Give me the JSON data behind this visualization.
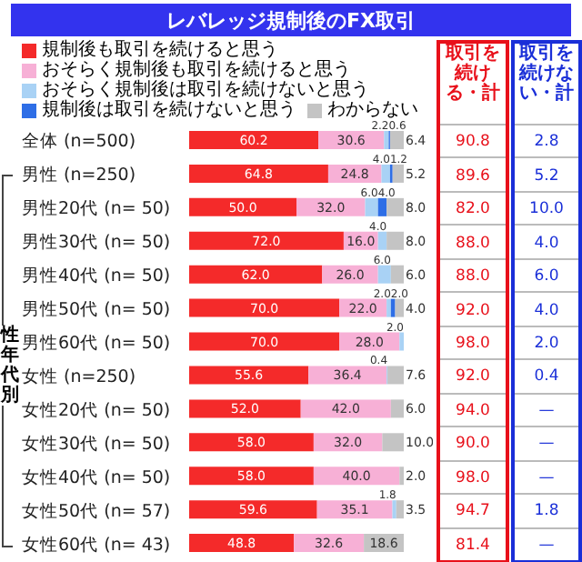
{
  "chart_data": {
    "type": "bar",
    "orientation": "horizontal",
    "stacked": true,
    "title": "レバレッジ規制後のFX取引",
    "categories": [
      "全体 (n=500)",
      "男性 (n=250)",
      "男性20代 (n= 50)",
      "男性30代 (n= 50)",
      "男性40代 (n= 50)",
      "男性50代 (n= 50)",
      "男性60代 (n= 50)",
      "女性 (n=250)",
      "女性20代 (n= 50)",
      "女性30代 (n= 50)",
      "女性40代 (n= 50)",
      "女性50代 (n= 57)",
      "女性60代 (n= 43)"
    ],
    "series": [
      {
        "name": "規制後も取引を続けると思う",
        "color": "#f42a2a",
        "values": [
          60.2,
          64.8,
          50.0,
          72.0,
          62.0,
          70.0,
          70.0,
          55.6,
          52.0,
          58.0,
          58.0,
          59.6,
          48.8
        ],
        "value_labels": [
          "60.2",
          "64.8",
          "50.0",
          "72.0",
          "62.0",
          "70.0",
          "70.0",
          "55.6",
          "52.0",
          "58.0",
          "58.0",
          "59.6",
          "48.8"
        ]
      },
      {
        "name": "おそらく規制後も取引を続けると思う",
        "color": "#f7b0d6",
        "values": [
          30.6,
          24.8,
          32.0,
          16.0,
          26.0,
          22.0,
          28.0,
          36.4,
          42.0,
          32.0,
          40.0,
          35.1,
          32.6
        ],
        "value_labels": [
          "30.6",
          "24.8",
          "32.0",
          "16.0",
          "26.0",
          "22.0",
          "28.0",
          "36.4",
          "42.0",
          "32.0",
          "40.0",
          "35.1",
          "32.6"
        ]
      },
      {
        "name": "おそらく規制後は取引を続けないと思う",
        "color": "#a9d2f5",
        "values": [
          2.2,
          4.0,
          6.0,
          4.0,
          6.0,
          2.0,
          2.0,
          0.4,
          null,
          null,
          null,
          1.8,
          null
        ],
        "value_labels": [
          "2.2",
          "4.0",
          "6.0",
          "4.0",
          "6.0",
          "2.0",
          "2.0",
          "0.4",
          null,
          null,
          null,
          "1.8",
          null
        ]
      },
      {
        "name": "規制後は取引を続けないと思う",
        "color": "#2e6ee6",
        "values": [
          0.6,
          1.2,
          4.0,
          null,
          null,
          2.0,
          null,
          null,
          null,
          null,
          null,
          null,
          null
        ],
        "value_labels": [
          "0.6",
          "1.2",
          "4.0",
          null,
          null,
          "2.0",
          null,
          null,
          null,
          null,
          null,
          null,
          null
        ]
      },
      {
        "name": "わからない",
        "color": "#c4c4c4",
        "values": [
          6.4,
          5.2,
          8.0,
          8.0,
          6.0,
          4.0,
          null,
          7.6,
          6.0,
          10.0,
          2.0,
          3.5,
          18.6
        ],
        "value_labels": [
          "6.4",
          "5.2",
          "8.0",
          "8.0",
          "6.0",
          "4.0",
          null,
          "7.6",
          "6.0",
          "10.0",
          "2.0",
          "3.5",
          "18.6"
        ]
      }
    ],
    "legend": "top",
    "annotations": [
      "性年代別",
      "取引を続ける・計",
      "取引を続けない・計",
      "90.8",
      "2.8",
      "89.6",
      "5.2",
      "82.0",
      "10.0",
      "88.0",
      "4.0",
      "88.0",
      "6.0",
      "92.0",
      "4.0",
      "98.0",
      "2.0",
      "92.0",
      "0.4",
      "94.0",
      "—",
      "90.0",
      "—",
      "98.0",
      "—",
      "94.7",
      "1.8",
      "81.4",
      "—"
    ]
  }
}
